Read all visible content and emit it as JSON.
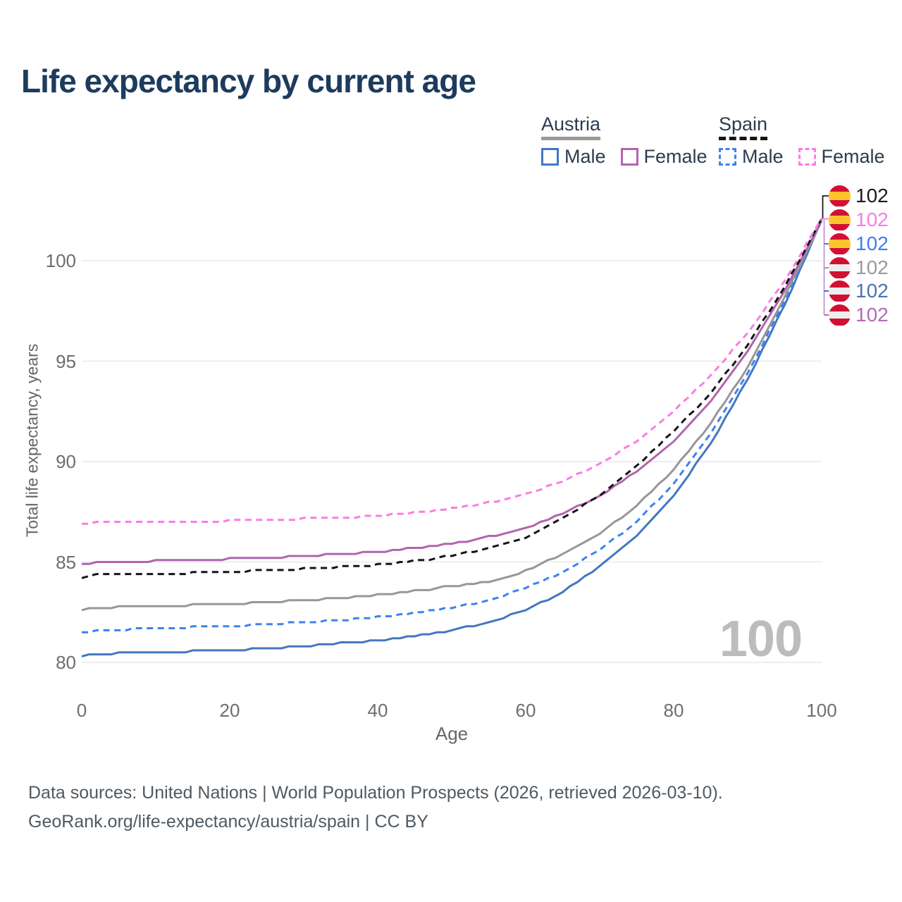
{
  "chart_data": {
    "type": "line",
    "title": "Life expectancy by current age",
    "xlabel": "Age",
    "ylabel": "Total life expectancy, years",
    "x_ticks": [
      0,
      20,
      40,
      60,
      80,
      100
    ],
    "y_ticks": [
      80,
      85,
      90,
      95,
      100
    ],
    "xlim": [
      0,
      100
    ],
    "ylim": [
      79,
      103
    ],
    "grid": "horizontal-light",
    "watermark": "100",
    "ages": [
      0,
      2,
      5,
      10,
      15,
      20,
      25,
      30,
      35,
      40,
      45,
      50,
      55,
      60,
      65,
      70,
      75,
      80,
      85,
      90,
      95,
      100
    ],
    "series": [
      {
        "id": "austria-male",
        "name": "Austria Male",
        "country": "Austria",
        "sex": "Male",
        "style": "solid",
        "color": "#4477c0",
        "values": [
          80.3,
          80.42,
          80.45,
          80.5,
          80.55,
          80.6,
          80.7,
          80.8,
          80.95,
          81.1,
          81.3,
          81.6,
          82.0,
          82.6,
          83.5,
          84.8,
          86.3,
          88.3,
          90.9,
          94.1,
          97.8,
          102.0
        ]
      },
      {
        "id": "spain-male",
        "name": "Spain Male",
        "country": "Spain",
        "sex": "Male",
        "style": "dashed",
        "color": "#3d82f0",
        "values": [
          81.45,
          81.58,
          81.62,
          81.7,
          81.75,
          81.8,
          81.9,
          82.0,
          82.1,
          82.25,
          82.45,
          82.7,
          83.1,
          83.7,
          84.5,
          85.6,
          87.0,
          88.9,
          91.4,
          94.4,
          98.0,
          102.0
        ]
      },
      {
        "id": "austria-both",
        "name": "Austria Both sexes",
        "country": "Austria",
        "sex": "Both sexes",
        "style": "solid",
        "color": "#979797",
        "values": [
          82.6,
          82.72,
          82.75,
          82.8,
          82.85,
          82.9,
          83.0,
          83.1,
          83.2,
          83.35,
          83.55,
          83.8,
          84.0,
          84.55,
          85.4,
          86.4,
          87.8,
          89.6,
          91.9,
          94.7,
          98.2,
          102.0
        ]
      },
      {
        "id": "austria-female",
        "name": "Austria Female",
        "country": "Austria",
        "sex": "Female",
        "style": "solid",
        "color": "#b165ae",
        "values": [
          84.85,
          85.0,
          85.0,
          85.05,
          85.1,
          85.15,
          85.2,
          85.3,
          85.4,
          85.5,
          85.7,
          85.9,
          86.25,
          86.7,
          87.4,
          88.3,
          89.5,
          91.0,
          93.0,
          95.5,
          98.5,
          102.05
        ]
      },
      {
        "id": "spain-both",
        "name": "Spain Both sexes",
        "country": "Spain",
        "sex": "Both sexes",
        "style": "dashed",
        "color": "#151515",
        "values": [
          84.2,
          84.35,
          84.4,
          84.4,
          84.45,
          84.5,
          84.6,
          84.65,
          84.75,
          84.85,
          85.05,
          85.3,
          85.7,
          86.2,
          87.2,
          88.3,
          89.8,
          91.5,
          93.4,
          95.8,
          98.7,
          102.05
        ]
      },
      {
        "id": "spain-female",
        "name": "Spain Female",
        "country": "Spain",
        "sex": "Female",
        "style": "dashed",
        "color": "#fb7ce3",
        "values": [
          86.85,
          86.95,
          87.0,
          87.0,
          87.0,
          87.05,
          87.1,
          87.15,
          87.2,
          87.3,
          87.45,
          87.65,
          87.95,
          88.4,
          89.0,
          89.9,
          91.0,
          92.5,
          94.3,
          96.4,
          99.0,
          102.1
        ]
      }
    ],
    "end_labels": [
      {
        "series": "Spain Both sexes",
        "flag": "spain-flag-icon",
        "value": 102,
        "color": "#1a1a1a"
      },
      {
        "series": "Spain Female",
        "flag": "spain-flag-icon",
        "value": 102,
        "color": "#f87ce4"
      },
      {
        "series": "Spain Male",
        "flag": "spain-flag-icon",
        "value": 102,
        "color": "#3c7ef4"
      },
      {
        "series": "Austria Both sexes",
        "flag": "austria-flag-icon",
        "value": 102,
        "color": "#9b9b9b"
      },
      {
        "series": "Austria Male",
        "flag": "austria-flag-icon",
        "value": 102,
        "color": "#4a73b2"
      },
      {
        "series": "Austria Female",
        "flag": "austria-flag-icon",
        "value": 102,
        "color": "#b26ab8"
      }
    ]
  },
  "legend": {
    "groups": [
      {
        "name": "Austria",
        "line_style": "solid",
        "underline_color": "#999999",
        "items": [
          {
            "label": "Male",
            "color": "#4477c0"
          },
          {
            "label": "Female",
            "color": "#b165ae"
          }
        ]
      },
      {
        "name": "Spain",
        "line_style": "dashed",
        "underline_color": "#151515",
        "items": [
          {
            "label": "Male",
            "color": "#3d82f0"
          },
          {
            "label": "Female",
            "color": "#fb7ce3"
          }
        ]
      }
    ]
  },
  "flags": {
    "spain": {
      "colors": [
        "#d21034",
        "#ffc42d",
        "#d21034"
      ],
      "fractions": [
        0.3,
        0.4,
        0.3
      ]
    },
    "austria": {
      "colors": [
        "#d21034",
        "#eeeeee",
        "#d21034"
      ],
      "fractions": [
        0.334,
        0.333,
        0.333
      ]
    }
  },
  "footer": {
    "line1": "Data sources: United Nations | World Population Prospects (2026, retrieved 2026-03-10).",
    "line2": "GeoRank.org/life-expectancy/austria/spain | CC BY"
  },
  "colors": {
    "title": "#1d3b5e",
    "axis_text": "#6e6e6e",
    "axis_title": "#666666",
    "grid": "#e9e9e9",
    "watermark": "#bcbcbc",
    "footer_text": "#4f5962",
    "connector_vertical": "#b78bd2"
  }
}
